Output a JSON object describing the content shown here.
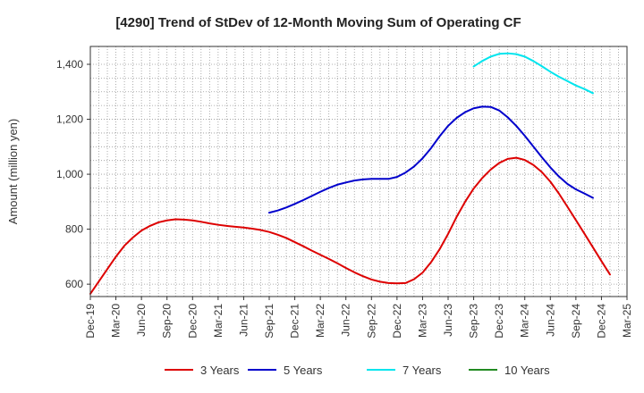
{
  "chart_data": {
    "type": "line",
    "title": "[4290]  Trend of StDev of 12-Month Moving Sum of Operating CF",
    "xlabel": "",
    "ylabel": "Amount (million yen)",
    "x_ticks": [
      "Dec-19",
      "Mar-20",
      "Jun-20",
      "Sep-20",
      "Dec-20",
      "Mar-21",
      "Jun-21",
      "Sep-21",
      "Dec-21",
      "Mar-22",
      "Jun-22",
      "Sep-22",
      "Dec-22",
      "Mar-23",
      "Jun-23",
      "Sep-23",
      "Dec-23",
      "Mar-24",
      "Jun-24",
      "Sep-24",
      "Dec-24",
      "Mar-25"
    ],
    "y_ticks": [
      600,
      800,
      1000,
      1200,
      1400
    ],
    "y_tick_labels": [
      "600",
      "800",
      "1,000",
      "1,200",
      "1,400"
    ],
    "ylim": [
      555,
      1465
    ],
    "grid": true,
    "legend_position": "bottom",
    "series": [
      {
        "name": "3 Years",
        "color": "#dd0000",
        "start": "Dec-19",
        "values": [
          565,
          610,
          655,
          700,
          740,
          770,
          795,
          812,
          825,
          832,
          836,
          835,
          832,
          827,
          821,
          816,
          812,
          809,
          806,
          802,
          797,
          790,
          780,
          768,
          753,
          738,
          722,
          707,
          692,
          676,
          659,
          643,
          629,
          617,
          609,
          604,
          603,
          604,
          618,
          642,
          680,
          727,
          783,
          845,
          900,
          948,
          986,
          1017,
          1041,
          1056,
          1060,
          1052,
          1034,
          1008,
          973,
          930,
          882,
          833,
          784,
          734,
          684,
          635
        ]
      },
      {
        "name": "5 Years",
        "color": "#0000cc",
        "start": "Sep-21",
        "values": [
          860,
          868,
          879,
          892,
          906,
          921,
          936,
          950,
          962,
          970,
          977,
          981,
          983,
          983,
          983,
          990,
          1006,
          1028,
          1058,
          1095,
          1138,
          1176,
          1205,
          1226,
          1240,
          1246,
          1245,
          1232,
          1207,
          1176,
          1140,
          1101,
          1062,
          1025,
          992,
          965,
          945,
          930,
          914
        ]
      },
      {
        "name": "7 Years",
        "color": "#00e5ee",
        "start": "Sep-23",
        "values": [
          1392,
          1412,
          1428,
          1438,
          1440,
          1437,
          1428,
          1412,
          1393,
          1373,
          1355,
          1339,
          1323,
          1310,
          1295
        ]
      },
      {
        "name": "10 Years",
        "color": "#228b22",
        "start": "Sep-24",
        "values": []
      }
    ]
  }
}
